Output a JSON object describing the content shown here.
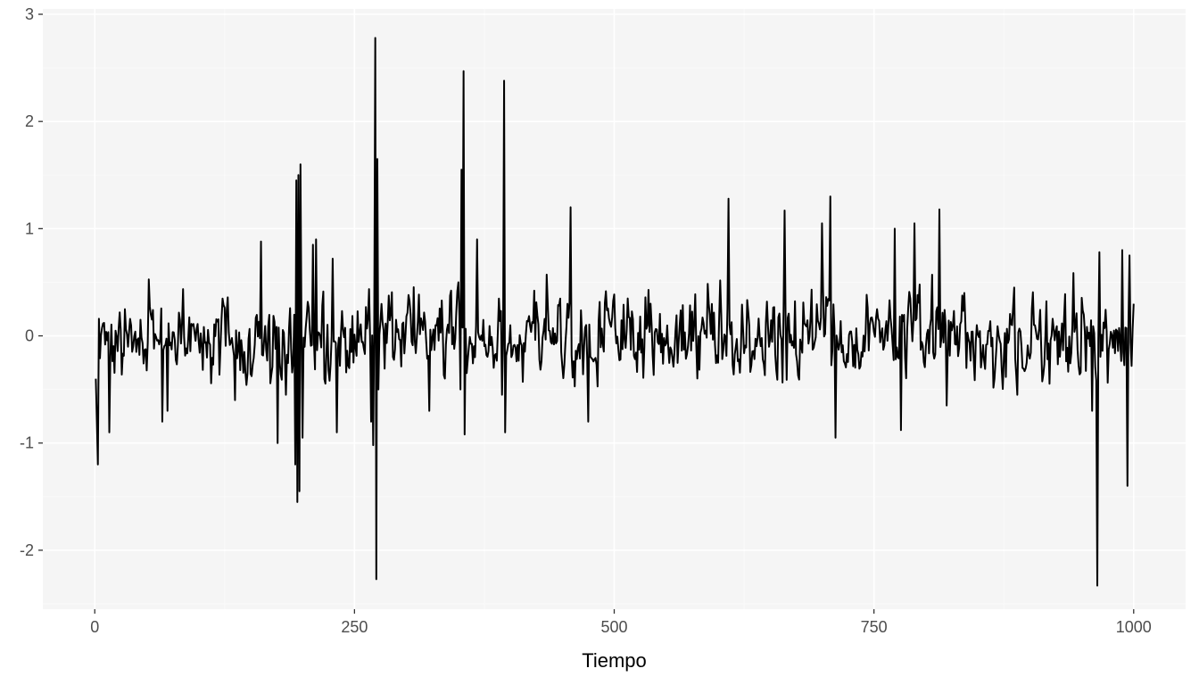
{
  "chart_data": {
    "type": "line",
    "title": "",
    "xlabel": "Tiempo",
    "ylabel": "",
    "xlim": [
      -50,
      1050
    ],
    "ylim": [
      -2.55,
      3.05
    ],
    "x_ticks": [
      0,
      250,
      500,
      750,
      1000
    ],
    "x_tick_labels": [
      "0",
      "250",
      "500",
      "750",
      "1000"
    ],
    "y_ticks": [
      -2,
      -1,
      0,
      1,
      2,
      3
    ],
    "y_tick_labels": [
      "-2",
      "-1",
      "0",
      "1",
      "2",
      "3"
    ],
    "grid": true,
    "legend": "none",
    "colors": {
      "panel": "#f5f5f5",
      "grid_major": "#ffffff",
      "grid_minor": "#fafafa",
      "line": "#000000",
      "tick": "#333333"
    },
    "series": [
      {
        "n": 1000,
        "baseline_volatility": 0.3,
        "spikes": [
          {
            "x": 1,
            "y": -0.4
          },
          {
            "x": 2,
            "y": -0.8
          },
          {
            "x": 3,
            "y": -1.2
          },
          {
            "x": 14,
            "y": -0.9
          },
          {
            "x": 65,
            "y": -0.8
          },
          {
            "x": 70,
            "y": -0.7
          },
          {
            "x": 135,
            "y": -0.6
          },
          {
            "x": 160,
            "y": 0.88
          },
          {
            "x": 176,
            "y": -1.0
          },
          {
            "x": 184,
            "y": -0.55
          },
          {
            "x": 193,
            "y": -1.2
          },
          {
            "x": 194,
            "y": 1.45
          },
          {
            "x": 195,
            "y": -1.55
          },
          {
            "x": 196,
            "y": 1.5
          },
          {
            "x": 197,
            "y": -1.45
          },
          {
            "x": 198,
            "y": 1.6
          },
          {
            "x": 200,
            "y": -0.95
          },
          {
            "x": 210,
            "y": 0.85
          },
          {
            "x": 213,
            "y": 0.9
          },
          {
            "x": 229,
            "y": 0.72
          },
          {
            "x": 233,
            "y": -0.9
          },
          {
            "x": 266,
            "y": -0.8
          },
          {
            "x": 268,
            "y": -1.02
          },
          {
            "x": 270,
            "y": 2.78
          },
          {
            "x": 271,
            "y": -2.27
          },
          {
            "x": 272,
            "y": 1.65
          },
          {
            "x": 273,
            "y": -0.5
          },
          {
            "x": 322,
            "y": -0.7
          },
          {
            "x": 350,
            "y": 0.5
          },
          {
            "x": 352,
            "y": -0.5
          },
          {
            "x": 353,
            "y": 1.55
          },
          {
            "x": 355,
            "y": 2.47
          },
          {
            "x": 356,
            "y": -0.92
          },
          {
            "x": 368,
            "y": 0.9
          },
          {
            "x": 392,
            "y": -0.55
          },
          {
            "x": 394,
            "y": 2.38
          },
          {
            "x": 395,
            "y": -0.9
          },
          {
            "x": 458,
            "y": 1.2
          },
          {
            "x": 475,
            "y": -0.8
          },
          {
            "x": 610,
            "y": 1.28
          },
          {
            "x": 664,
            "y": 1.17
          },
          {
            "x": 700,
            "y": 1.05
          },
          {
            "x": 708,
            "y": 1.3
          },
          {
            "x": 713,
            "y": -0.95
          },
          {
            "x": 770,
            "y": 1.0
          },
          {
            "x": 776,
            "y": -0.88
          },
          {
            "x": 789,
            "y": 1.05
          },
          {
            "x": 813,
            "y": 1.18
          },
          {
            "x": 820,
            "y": -0.65
          },
          {
            "x": 888,
            "y": -0.55
          },
          {
            "x": 960,
            "y": -0.7
          },
          {
            "x": 965,
            "y": -2.33
          },
          {
            "x": 967,
            "y": 0.78
          },
          {
            "x": 989,
            "y": 0.8
          },
          {
            "x": 994,
            "y": -1.4
          },
          {
            "x": 996,
            "y": 0.75
          }
        ]
      }
    ]
  }
}
